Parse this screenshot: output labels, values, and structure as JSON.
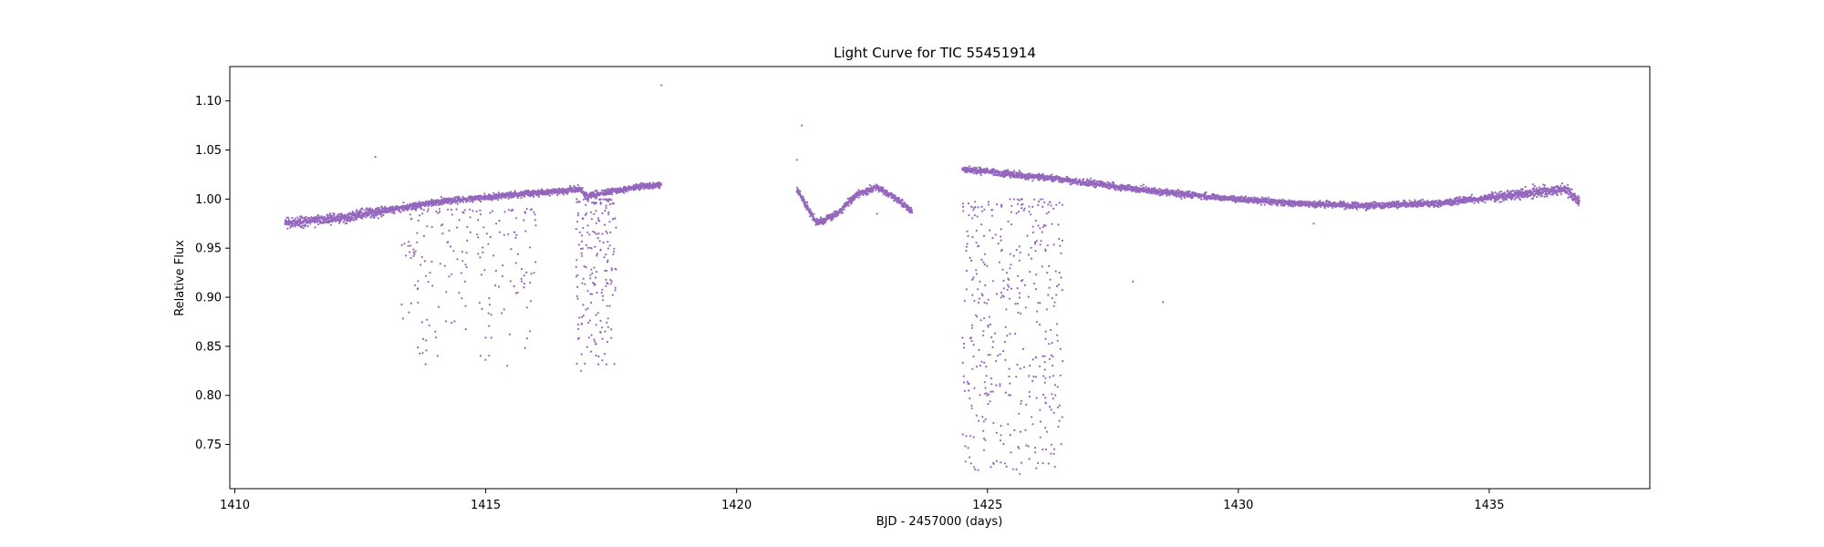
{
  "chart_data": {
    "type": "scatter",
    "title": "Light Curve for TIC 55451914",
    "xlabel": "BJD - 2457000 (days)",
    "ylabel": "Relative Flux",
    "xlim": [
      1409.9,
      1438.2
    ],
    "ylim": [
      0.705,
      1.135
    ],
    "xticks": [
      1410,
      1415,
      1420,
      1425,
      1430,
      1435
    ],
    "yticks": [
      0.75,
      0.8,
      0.85,
      0.9,
      0.95,
      1.0,
      1.05,
      1.1
    ],
    "xtick_labels": [
      "1410",
      "1415",
      "1420",
      "1425",
      "1430",
      "1435"
    ],
    "ytick_labels": [
      "0.75",
      "0.80",
      "0.85",
      "0.90",
      "0.95",
      "1.00",
      "1.05",
      "1.10"
    ],
    "grid": false,
    "marker_color": "#9467bd",
    "trend": {
      "segment_1": {
        "x": [
          1411.0,
          1412.0,
          1413.0,
          1414.0,
          1415.0,
          1416.0,
          1416.9,
          1417.0,
          1418.0,
          1418.5
        ],
        "y": [
          0.975,
          0.98,
          0.988,
          0.997,
          1.002,
          1.006,
          1.01,
          1.003,
          1.012,
          1.015
        ]
      },
      "segment_2": {
        "x": [
          1421.2,
          1421.6,
          1422.0,
          1422.4,
          1422.8,
          1423.2,
          1423.5
        ],
        "y": [
          1.01,
          0.975,
          0.985,
          1.005,
          1.012,
          1.0,
          0.987
        ]
      },
      "segment_3": {
        "x": [
          1424.5,
          1425.0,
          1425.5,
          1426.5,
          1428.0,
          1429.5,
          1431.0,
          1432.5,
          1434.0,
          1435.5,
          1436.5,
          1436.8
        ],
        "y": [
          1.03,
          1.028,
          1.025,
          1.02,
          1.01,
          1.002,
          0.996,
          0.993,
          0.996,
          1.004,
          1.01,
          0.998
        ]
      }
    },
    "outlier_regions": [
      {
        "x": [
          1413.3,
          1416.0
        ],
        "y": [
          0.83,
          0.99
        ]
      },
      {
        "x": [
          1416.8,
          1417.6
        ],
        "y": [
          0.83,
          1.0
        ]
      },
      {
        "x": [
          1424.5,
          1426.5
        ],
        "y": [
          0.72,
          1.0
        ]
      }
    ]
  }
}
